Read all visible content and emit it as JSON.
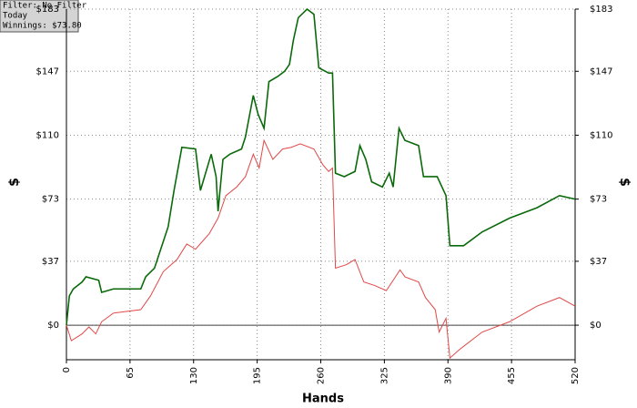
{
  "chart_data": {
    "type": "line",
    "x_label": "Hands",
    "y_label": "$",
    "y2_label": "$",
    "annotations": [
      "Filter: No Filter",
      "Today",
      "Winnings: $73.80"
    ],
    "xlim": [
      0,
      520
    ],
    "xticks": [
      0,
      65,
      130,
      195,
      260,
      325,
      390,
      455,
      520
    ],
    "ylim": [
      -20,
      183
    ],
    "yticks": [
      {
        "value": 0,
        "label": "$0"
      },
      {
        "value": 37,
        "label": "$37"
      },
      {
        "value": 73,
        "label": "$73"
      },
      {
        "value": 110,
        "label": "$110"
      },
      {
        "value": 147,
        "label": "$147"
      },
      {
        "value": 183,
        "label": "$183"
      }
    ],
    "y2lim": [
      -20,
      183
    ],
    "y2ticks": [
      {
        "value": 0,
        "label": "$0"
      },
      {
        "value": 37,
        "label": "$37"
      },
      {
        "value": 73,
        "label": "$73"
      },
      {
        "value": 110,
        "label": "$110"
      },
      {
        "value": 147,
        "label": "$147"
      },
      {
        "value": 183,
        "label": "$183"
      }
    ],
    "grid": true,
    "series": [
      {
        "color": "#0a6a0a",
        "x": [
          0,
          3,
          7,
          16,
          20,
          33,
          36,
          48,
          62,
          76,
          81,
          90,
          104,
          110,
          118,
          132,
          137,
          148,
          153,
          155,
          160,
          167,
          179,
          183,
          191,
          196,
          202,
          207,
          216,
          223,
          228,
          232,
          237,
          246,
          253,
          258,
          268,
          272,
          275,
          284,
          295,
          300,
          306,
          312,
          323,
          330,
          334,
          340,
          346,
          360,
          365,
          379,
          388,
          392,
          406,
          425,
          453,
          481,
          504,
          520
        ],
        "values": [
          0,
          17,
          21,
          25,
          28,
          26,
          19,
          21,
          21,
          21,
          28,
          33,
          57,
          78,
          103,
          102,
          78,
          99,
          86,
          66,
          96,
          99,
          102,
          109,
          133,
          122,
          114,
          141,
          144,
          147,
          151,
          165,
          178,
          183,
          180,
          149,
          146,
          146,
          88,
          86,
          89,
          104,
          96,
          83,
          80,
          88,
          80,
          114,
          107,
          104,
          86,
          86,
          75,
          46,
          46,
          54,
          62,
          68,
          75,
          73
        ]
      },
      {
        "color": "#e04848",
        "x": [
          0,
          5,
          16,
          23,
          30,
          36,
          48,
          62,
          76,
          86,
          99,
          113,
          123,
          132,
          146,
          155,
          163,
          174,
          183,
          191,
          197,
          202,
          211,
          221,
          230,
          239,
          253,
          262,
          268,
          272,
          275,
          286,
          295,
          304,
          315,
          327,
          341,
          346,
          360,
          367,
          377,
          381,
          388,
          392,
          402,
          425,
          453,
          481,
          504,
          520
        ],
        "values": [
          0,
          -9,
          -5,
          -1,
          -5,
          2,
          7,
          8,
          9,
          17,
          31,
          38,
          47,
          44,
          53,
          62,
          75,
          80,
          86,
          99,
          91,
          107,
          96,
          102,
          103,
          105,
          102,
          93,
          89,
          91,
          33,
          35,
          38,
          25,
          23,
          20,
          32,
          28,
          25,
          16,
          9,
          -4,
          4,
          -19,
          -14,
          -4,
          2,
          11,
          16,
          11
        ]
      }
    ]
  }
}
